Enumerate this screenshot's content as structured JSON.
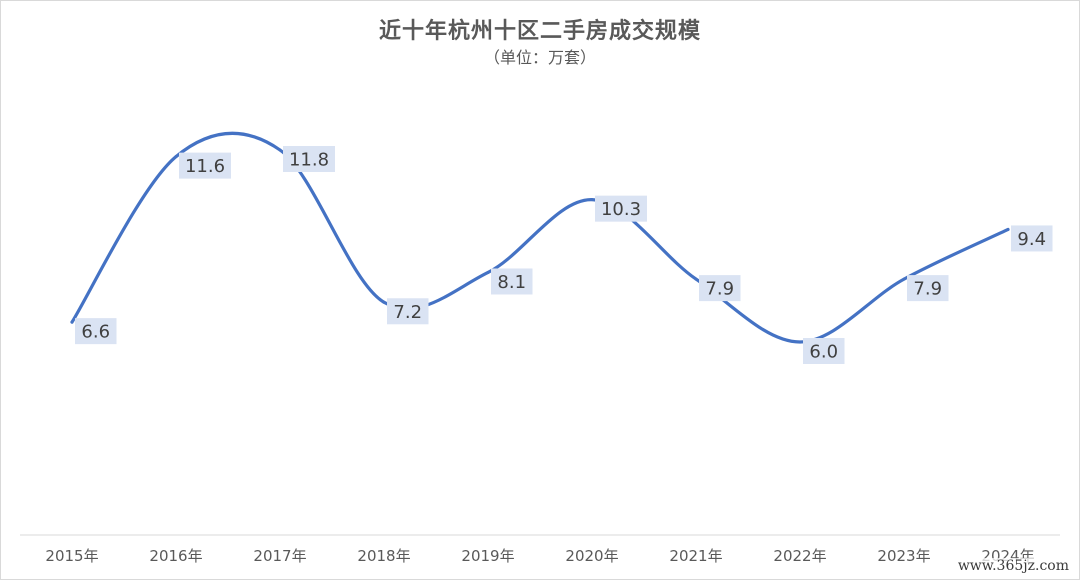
{
  "chart_data": {
    "type": "line",
    "title": "近十年杭州十区二手房成交规模",
    "subtitle": "（单位：万套）",
    "categories": [
      "2015年",
      "2016年",
      "2017年",
      "2018年",
      "2019年",
      "2020年",
      "2021年",
      "2022年",
      "2023年",
      "2024年"
    ],
    "series": [
      {
        "values": [
          6.6,
          11.6,
          11.8,
          7.2,
          8.1,
          10.3,
          7.9,
          6.0,
          7.9,
          9.4
        ]
      }
    ],
    "data_labels": [
      "6.6",
      "11.6",
      "11.8",
      "7.2",
      "8.1",
      "10.3",
      "7.9",
      "6.0",
      "7.9",
      "9.4"
    ],
    "smooth": true,
    "grid": false,
    "line_color": "#4472c4",
    "label_background": "#dae3f3"
  },
  "watermark": "www.365jz.com"
}
